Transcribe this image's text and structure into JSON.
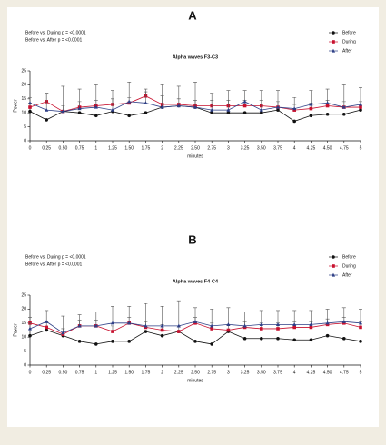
{
  "chart_data": [
    {
      "type": "line",
      "panel_label": "A",
      "title": "Alpha waves F3-C3",
      "annotations": [
        "Before vs. During p = <0.0001",
        "Before vs. After p = <0.0001"
      ],
      "x_label": "minutes",
      "y_label": "Power",
      "categories": [
        "0",
        "0.25",
        "0.50",
        "0.75",
        "1",
        "1.25",
        "1.50",
        "1.75",
        "2",
        "2.25",
        "2.50",
        "2.75",
        "3",
        "3.25",
        "3.50",
        "3.75",
        "4",
        "4.25",
        "4.50",
        "4.75",
        "5"
      ],
      "ylim": [
        0,
        25
      ],
      "yticks": [
        0,
        5,
        10,
        15,
        20,
        25
      ],
      "series": [
        {
          "name": "Before",
          "color": "#111111",
          "marker": "circle",
          "values": [
            10.5,
            7.5,
            10.5,
            10,
            9,
            10.5,
            9,
            10,
            12,
            12.5,
            12,
            10,
            10,
            10,
            10,
            11,
            7,
            9,
            9.5,
            9.5,
            11
          ]
        },
        {
          "name": "During",
          "color": "#c8102e",
          "marker": "square",
          "values": [
            12,
            14,
            10.5,
            12,
            12.5,
            13,
            13.5,
            16,
            13,
            13,
            12.5,
            12.5,
            12.5,
            12.5,
            12.5,
            12,
            11,
            11.5,
            12.5,
            12,
            12
          ],
          "errors": [
            1.5,
            3,
            2,
            2,
            2,
            2,
            2,
            1.5,
            3,
            2,
            2,
            2,
            2,
            2,
            2,
            2,
            2,
            2,
            2,
            2,
            2
          ]
        },
        {
          "name": "After",
          "color": "#2e3f86",
          "marker": "triangle",
          "values": [
            13.5,
            11,
            10.5,
            11.5,
            12,
            11,
            14,
            13.5,
            12,
            12.5,
            12,
            11,
            11,
            14,
            11,
            12,
            11.5,
            13,
            13.5,
            12,
            13
          ],
          "errors": [
            2,
            6,
            9,
            7,
            8,
            7,
            7,
            5,
            8,
            7,
            9,
            6,
            7,
            4,
            7,
            6,
            4,
            5,
            5,
            8,
            6
          ]
        }
      ]
    },
    {
      "type": "line",
      "panel_label": "B",
      "title": "Alpha waves F4-C4",
      "annotations": [
        "Before vs. During p = <0.0001",
        "Before vs. After p = <0.0001"
      ],
      "x_label": "minutes",
      "y_label": "Power",
      "categories": [
        "0",
        "0.25",
        "0.50",
        "0.75",
        "1",
        "1.25",
        "1.50",
        "1.75",
        "2",
        "2.25",
        "2.50",
        "2.75",
        "3",
        "3.25",
        "3.50",
        "3.75",
        "4",
        "4.25",
        "4.50",
        "4.75",
        "5"
      ],
      "ylim": [
        0,
        25
      ],
      "yticks": [
        0,
        5,
        10,
        15,
        20,
        25
      ],
      "series": [
        {
          "name": "Before",
          "color": "#111111",
          "marker": "circle",
          "values": [
            10.5,
            12.5,
            10.5,
            8.5,
            7.5,
            8.5,
            8.5,
            12,
            10.5,
            12,
            8.5,
            7.5,
            12,
            9.5,
            9.5,
            9.5,
            9,
            9,
            10.5,
            9.5,
            8.5
          ]
        },
        {
          "name": "During",
          "color": "#c8102e",
          "marker": "square",
          "values": [
            15,
            13.5,
            11,
            14,
            14,
            12,
            15,
            13.5,
            12.5,
            12,
            15,
            13,
            12.5,
            13.5,
            13,
            13,
            13.5,
            13.5,
            14.5,
            15,
            13.5
          ],
          "errors": [
            2,
            2,
            2,
            2,
            2,
            2,
            2,
            2,
            2,
            2,
            2,
            2,
            2,
            2,
            2,
            2,
            2,
            2,
            2,
            2,
            2
          ]
        },
        {
          "name": "After",
          "color": "#2e3f86",
          "marker": "triangle",
          "values": [
            13,
            15.5,
            11.5,
            14,
            14,
            15,
            15,
            14,
            14,
            14,
            15.5,
            14,
            14.5,
            14,
            14.5,
            14.5,
            14.5,
            14.5,
            15,
            15.5,
            15
          ],
          "errors": [
            2,
            4,
            6,
            4,
            5,
            6,
            6,
            8,
            7,
            9,
            5,
            6,
            6,
            5,
            5,
            5,
            5,
            5,
            5,
            5,
            5
          ]
        }
      ]
    }
  ]
}
